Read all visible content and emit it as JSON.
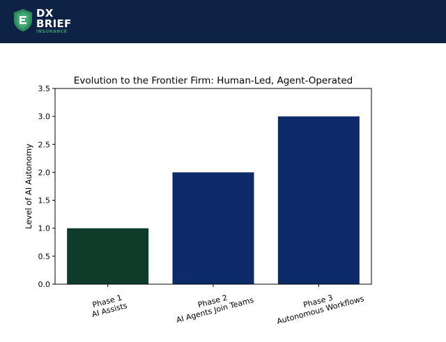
{
  "header": {
    "brand_line1": "DX",
    "brand_line2": "BRIEF",
    "brand_sub": "INSURANCE",
    "background": "#0d2245",
    "accent": "#3a9a6a"
  },
  "chart_data": {
    "type": "bar",
    "title": "Evolution to the Frontier Firm: Human-Led, Agent-Operated",
    "xlabel": "",
    "ylabel": "Level of AI Autonomy",
    "ylim": [
      0,
      3.5
    ],
    "yticks": [
      "0.0",
      "0.5",
      "1.0",
      "1.5",
      "2.0",
      "2.5",
      "3.0",
      "3.5"
    ],
    "grid": false,
    "categories": [
      [
        "Phase 1",
        "AI Assists"
      ],
      [
        "Phase 2",
        "AI Agents Join Teams"
      ],
      [
        "Phase 3",
        "Autonomous Workflows"
      ]
    ],
    "values": [
      1,
      2,
      3
    ],
    "colors": [
      "#0f3b2a",
      "#0d2a6b",
      "#0d2a6b"
    ]
  }
}
